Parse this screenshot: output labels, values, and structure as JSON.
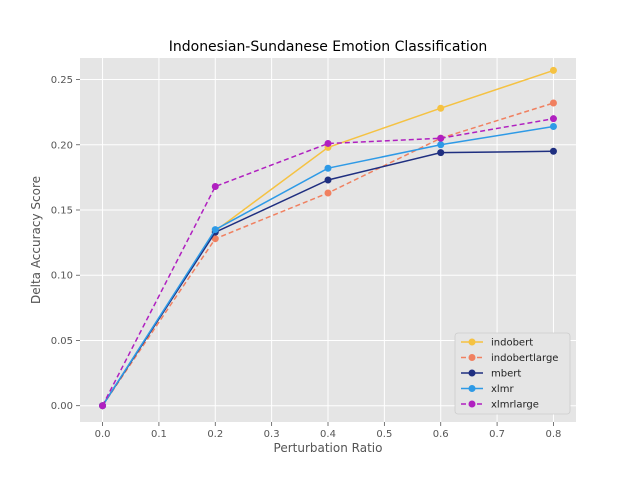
{
  "chart_data": {
    "type": "line",
    "title": "Indonesian-Sundanese Emotion Classification",
    "xlabel": "Perturbation Ratio",
    "ylabel": "Delta Accuracy Score",
    "x": [
      0.0,
      0.2,
      0.4,
      0.6,
      0.8
    ],
    "xlim": [
      -0.04,
      0.84
    ],
    "ylim": [
      -0.0125,
      0.2665
    ],
    "x_ticks": [
      0.0,
      0.1,
      0.2,
      0.3,
      0.4,
      0.5,
      0.6,
      0.7,
      0.8
    ],
    "x_tick_labels": [
      "0.0",
      "0.1",
      "0.2",
      "0.3",
      "0.4",
      "0.5",
      "0.6",
      "0.7",
      "0.8"
    ],
    "y_ticks": [
      0.0,
      0.05,
      0.1,
      0.15,
      0.2,
      0.25
    ],
    "y_tick_labels": [
      "0.00",
      "0.05",
      "0.10",
      "0.15",
      "0.20",
      "0.25"
    ],
    "grid": true,
    "legend_position": "lower-right",
    "background": "#e5e5e5",
    "series": [
      {
        "name": "indobert",
        "color": "#f5c242",
        "linestyle": "solid",
        "values": [
          0.0,
          0.134,
          0.198,
          0.228,
          0.257
        ]
      },
      {
        "name": "indobertlarge",
        "color": "#f08060",
        "linestyle": "dashed",
        "values": [
          0.0,
          0.128,
          0.163,
          0.205,
          0.232
        ]
      },
      {
        "name": "mbert",
        "color": "#1f2f80",
        "linestyle": "solid",
        "values": [
          0.0,
          0.133,
          0.173,
          0.194,
          0.195
        ]
      },
      {
        "name": "xlmr",
        "color": "#2e9ae6",
        "linestyle": "solid",
        "values": [
          0.0,
          0.135,
          0.182,
          0.2,
          0.214
        ]
      },
      {
        "name": "xlmrlarge",
        "color": "#b020c0",
        "linestyle": "dashed",
        "values": [
          0.0,
          0.168,
          0.201,
          0.205,
          0.22
        ]
      }
    ]
  }
}
